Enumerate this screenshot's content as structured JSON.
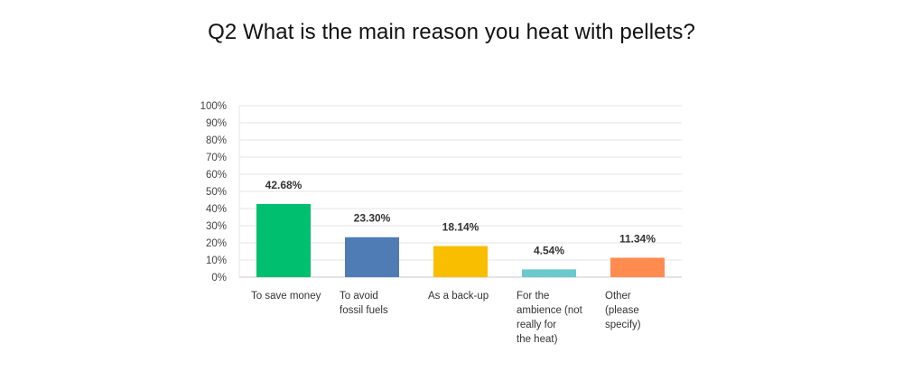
{
  "chart_data": {
    "type": "bar",
    "title": "Q2 What is the main reason you heat with pellets?",
    "xlabel": "",
    "ylabel": "",
    "ylim": [
      0,
      100
    ],
    "y_unit": "%",
    "y_ticks": [
      "0%",
      "10%",
      "20%",
      "30%",
      "40%",
      "50%",
      "60%",
      "70%",
      "80%",
      "90%",
      "100%"
    ],
    "grid": true,
    "legend": "none",
    "categories": [
      [
        "To save money"
      ],
      [
        "To avoid",
        "fossil fuels"
      ],
      [
        "As a back-up"
      ],
      [
        "For the",
        "ambience (not",
        "really for",
        "the heat)"
      ],
      [
        "Other",
        "(please",
        "specify)"
      ]
    ],
    "values": [
      42.68,
      23.3,
      18.14,
      4.54,
      11.34
    ],
    "data_labels": [
      "42.68%",
      "23.30%",
      "18.14%",
      "4.54%",
      "11.34%"
    ],
    "colors": [
      "#00bf6f",
      "#507cb6",
      "#f9be00",
      "#6bc8cd",
      "#ff8b4f"
    ]
  }
}
